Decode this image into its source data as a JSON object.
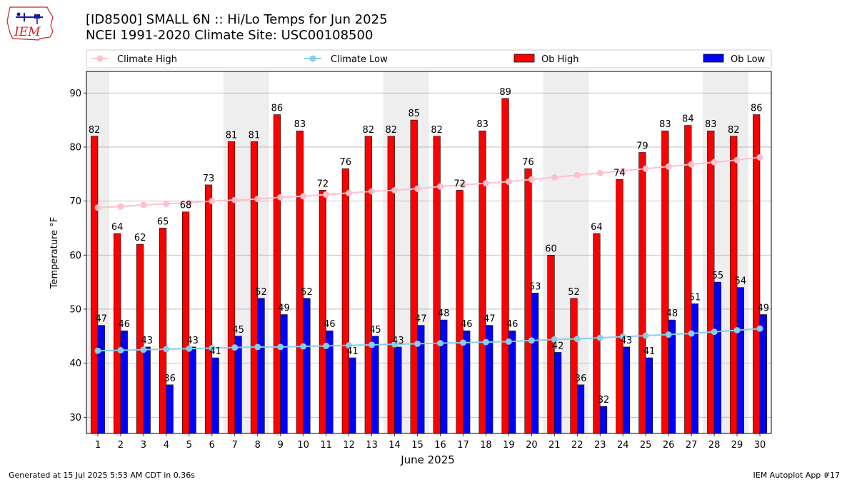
{
  "header": {
    "title_line1": "[ID8500] SMALL 6N :: Hi/Lo Temps for Jun 2025",
    "title_line2": "NCEI 1991-2020 Climate Site: USC00108500",
    "logo_text": "IEM"
  },
  "footer": {
    "generated": "Generated at 15 Jul 2025 5:53 AM CDT in 0.36s",
    "app": "IEM Autoplot App #17"
  },
  "colors": {
    "ob_high": "#ff0000",
    "ob_low": "#0000ff",
    "climate_high": "#ffc0cb",
    "climate_low": "#87ceeb",
    "weekend_shade": "#eeeeee",
    "logo_red": "#cc2222",
    "logo_blue": "#1a1aa6"
  },
  "chart_data": {
    "type": "bar",
    "xlabel": "June 2025",
    "ylabel": "Temperature °F",
    "ylim": [
      27,
      94
    ],
    "yticks": [
      30,
      40,
      50,
      60,
      70,
      80,
      90
    ],
    "grid": "horizontal",
    "legend_placement": "top",
    "shaded_days": [
      1,
      7,
      8,
      14,
      15,
      21,
      22,
      28,
      29
    ],
    "categories": [
      1,
      2,
      3,
      4,
      5,
      6,
      7,
      8,
      9,
      10,
      11,
      12,
      13,
      14,
      15,
      16,
      17,
      18,
      19,
      20,
      21,
      22,
      23,
      24,
      25,
      26,
      27,
      28,
      29,
      30
    ],
    "series": [
      {
        "name": "Ob High",
        "type": "bar",
        "values": [
          82,
          64,
          62,
          65,
          68,
          73,
          81,
          81,
          86,
          83,
          72,
          76,
          82,
          82,
          85,
          82,
          72,
          83,
          89,
          76,
          60,
          52,
          64,
          74,
          79,
          83,
          84,
          83,
          82,
          86
        ]
      },
      {
        "name": "Ob Low",
        "type": "bar",
        "values": [
          47,
          46,
          43,
          36,
          43,
          41,
          45,
          52,
          49,
          52,
          46,
          41,
          45,
          43,
          47,
          48,
          46,
          47,
          46,
          53,
          42,
          36,
          32,
          43,
          41,
          48,
          51,
          55,
          54,
          49
        ]
      },
      {
        "name": "Climate High",
        "type": "line",
        "values": [
          68.8,
          69.0,
          69.3,
          69.5,
          69.7,
          70.0,
          70.2,
          70.4,
          70.7,
          70.9,
          71.2,
          71.5,
          71.8,
          72.0,
          72.3,
          72.7,
          73.0,
          73.3,
          73.6,
          74.0,
          74.4,
          74.8,
          75.2,
          75.6,
          76.0,
          76.4,
          76.8,
          77.2,
          77.6,
          78.1
        ]
      },
      {
        "name": "Climate Low",
        "type": "line",
        "values": [
          42.3,
          42.4,
          42.5,
          42.6,
          42.7,
          42.8,
          42.9,
          43.0,
          43.0,
          43.1,
          43.2,
          43.3,
          43.4,
          43.5,
          43.6,
          43.7,
          43.8,
          43.9,
          44.0,
          44.2,
          44.4,
          44.5,
          44.7,
          44.9,
          45.1,
          45.3,
          45.5,
          45.8,
          46.1,
          46.4
        ]
      }
    ]
  }
}
